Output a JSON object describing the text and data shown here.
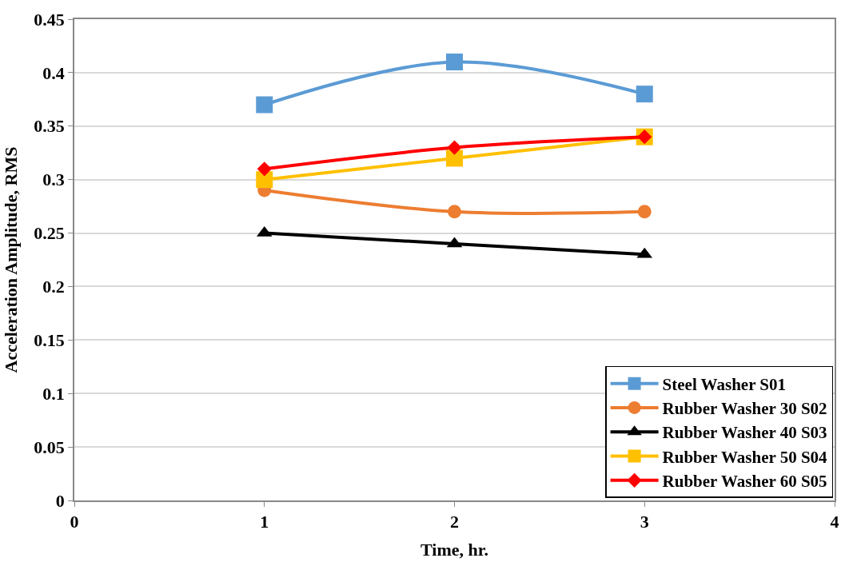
{
  "chart_data": {
    "type": "line",
    "xlabel": "Time, hr.",
    "ylabel": "Acceleration Amplitude, RMS",
    "x": [
      1,
      2,
      3
    ],
    "series": [
      {
        "name": "Steel Washer S01",
        "color": "#5b9bd5",
        "marker": "square",
        "values": [
          0.37,
          0.41,
          0.38
        ]
      },
      {
        "name": "Rubber Washer 30 S02",
        "color": "#ed7d31",
        "marker": "circle",
        "values": [
          0.29,
          0.27,
          0.27
        ]
      },
      {
        "name": "Rubber Washer 40 S03",
        "color": "#000000",
        "marker": "triangle",
        "values": [
          0.25,
          0.24,
          0.23
        ]
      },
      {
        "name": "Rubber Washer 50 S04",
        "color": "#ffc000",
        "marker": "square",
        "values": [
          0.3,
          0.32,
          0.34
        ]
      },
      {
        "name": "Rubber Washer 60 S05",
        "color": "#ff0000",
        "marker": "diamond",
        "values": [
          0.31,
          0.33,
          0.34
        ]
      }
    ],
    "xlim": [
      0,
      4
    ],
    "xticks": [
      0,
      1,
      2,
      3,
      4
    ],
    "ylim": [
      0,
      0.45
    ],
    "yticks": [
      0,
      0.05,
      0.1,
      0.15,
      0.2,
      0.25,
      0.3,
      0.35,
      0.4,
      0.45
    ],
    "grid": "y",
    "legend": "bottom right"
  }
}
